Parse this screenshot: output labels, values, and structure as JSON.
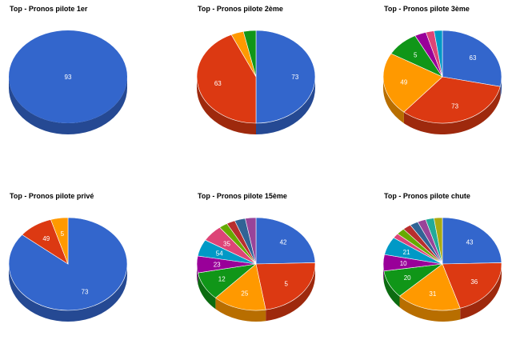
{
  "chart_data": [
    {
      "type": "pie",
      "title": "Top - Pronos pilote 1er",
      "slices": [
        {
          "value": 93,
          "label": "93",
          "color": "#3366cc"
        }
      ]
    },
    {
      "type": "pie",
      "title": "Top - Pronos pilote 2ème",
      "slices": [
        {
          "value": 73,
          "label": "73",
          "color": "#3366cc"
        },
        {
          "value": 63,
          "label": "63",
          "color": "#dc3912"
        },
        {
          "value": 5,
          "label": "",
          "color": "#ff9900"
        },
        {
          "value": 5,
          "label": "",
          "color": "#109618"
        }
      ]
    },
    {
      "type": "pie",
      "title": "Top - Pronos pilote 3ème",
      "slices": [
        {
          "value": 63,
          "label": "63",
          "color": "#3366cc"
        },
        {
          "value": 73,
          "label": "73",
          "color": "#dc3912"
        },
        {
          "value": 49,
          "label": "49",
          "color": "#ff9900"
        },
        {
          "value": 20,
          "label": "5",
          "color": "#109618"
        },
        {
          "value": 7,
          "label": "",
          "color": "#990099"
        },
        {
          "value": 5,
          "label": "",
          "color": "#dd4477"
        },
        {
          "value": 5,
          "label": "",
          "color": "#0099c6"
        }
      ]
    },
    {
      "type": "pie",
      "title": "Top - Pronos pilote privé",
      "slices": [
        {
          "value": 73,
          "label": "73",
          "color": "#3366cc"
        },
        {
          "value": 8,
          "label": "49",
          "color": "#dc3912"
        },
        {
          "value": 4,
          "label": "5",
          "color": "#ff9900"
        }
      ]
    },
    {
      "type": "pie",
      "title": "Top - Pronos pilote 15ème",
      "slices": [
        {
          "value": 42,
          "label": "42",
          "color": "#3366cc"
        },
        {
          "value": 39,
          "label": "5",
          "color": "#dc3912"
        },
        {
          "value": 25,
          "label": "25",
          "color": "#ff9900"
        },
        {
          "value": 17,
          "label": "12",
          "color": "#109618"
        },
        {
          "value": 10,
          "label": "23",
          "color": "#990099"
        },
        {
          "value": 10,
          "label": "54",
          "color": "#0099c6"
        },
        {
          "value": 10,
          "label": "35",
          "color": "#dd4477"
        },
        {
          "value": 4,
          "label": "",
          "color": "#66aa00"
        },
        {
          "value": 4,
          "label": "",
          "color": "#b82e2e"
        },
        {
          "value": 5,
          "label": "",
          "color": "#316395"
        },
        {
          "value": 5,
          "label": "",
          "color": "#994499"
        }
      ]
    },
    {
      "type": "pie",
      "title": "Top - Pronos pilote chute",
      "slices": [
        {
          "value": 43,
          "label": "43",
          "color": "#3366cc"
        },
        {
          "value": 36,
          "label": "36",
          "color": "#dc3912"
        },
        {
          "value": 31,
          "label": "31",
          "color": "#ff9900"
        },
        {
          "value": 17,
          "label": "20",
          "color": "#109618"
        },
        {
          "value": 10,
          "label": "10",
          "color": "#990099"
        },
        {
          "value": 11,
          "label": "21",
          "color": "#0099c6"
        },
        {
          "value": 3,
          "label": "",
          "color": "#dd4477"
        },
        {
          "value": 4,
          "label": "",
          "color": "#66aa00"
        },
        {
          "value": 4,
          "label": "",
          "color": "#b82e2e"
        },
        {
          "value": 4,
          "label": "",
          "color": "#316395"
        },
        {
          "value": 4,
          "label": "",
          "color": "#994499"
        },
        {
          "value": 4,
          "label": "",
          "color": "#22aa99"
        },
        {
          "value": 4,
          "label": "",
          "color": "#aaaa11"
        }
      ]
    }
  ]
}
